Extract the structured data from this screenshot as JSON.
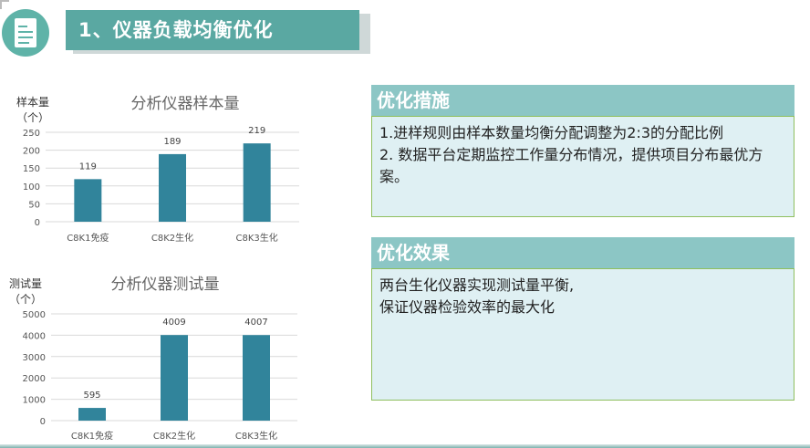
{
  "header": {
    "title": "1、仪器负载均衡优化"
  },
  "measures": {
    "title": "优化措施",
    "items": [
      "1.进样规则由样本数量均衡分配调整为2:3的分配比例",
      "2. 数据平台定期监控工作量分布情况，提供项目分布最优方案。"
    ]
  },
  "effect": {
    "title": "优化效果",
    "lines": [
      "两台生化仪器实现测试量平衡,",
      "保证仪器检验效率的最大化"
    ]
  },
  "chart_data": [
    {
      "type": "bar",
      "title": "分析仪器样本量",
      "ylabel_line1": "样本量",
      "ylabel_line2": "（个）",
      "categories": [
        "C8K1免疫",
        "C8K2生化",
        "C8K3生化"
      ],
      "values": [
        119,
        189,
        219
      ],
      "ylim": [
        0,
        250
      ],
      "yticks": [
        0,
        50,
        100,
        150,
        200,
        250
      ],
      "grid": true,
      "legend": "none",
      "color": "#31849b"
    },
    {
      "type": "bar",
      "title": "分析仪器测试量",
      "ylabel_line1": "测试量",
      "ylabel_line2": "（个）",
      "categories": [
        "C8K1免疫",
        "C8K2生化",
        "C8K3生化"
      ],
      "values": [
        595,
        4009,
        4007
      ],
      "ylim": [
        0,
        5000
      ],
      "yticks": [
        0,
        1000,
        2000,
        3000,
        4000,
        5000
      ],
      "grid": true,
      "legend": "none",
      "color": "#31849b"
    }
  ]
}
